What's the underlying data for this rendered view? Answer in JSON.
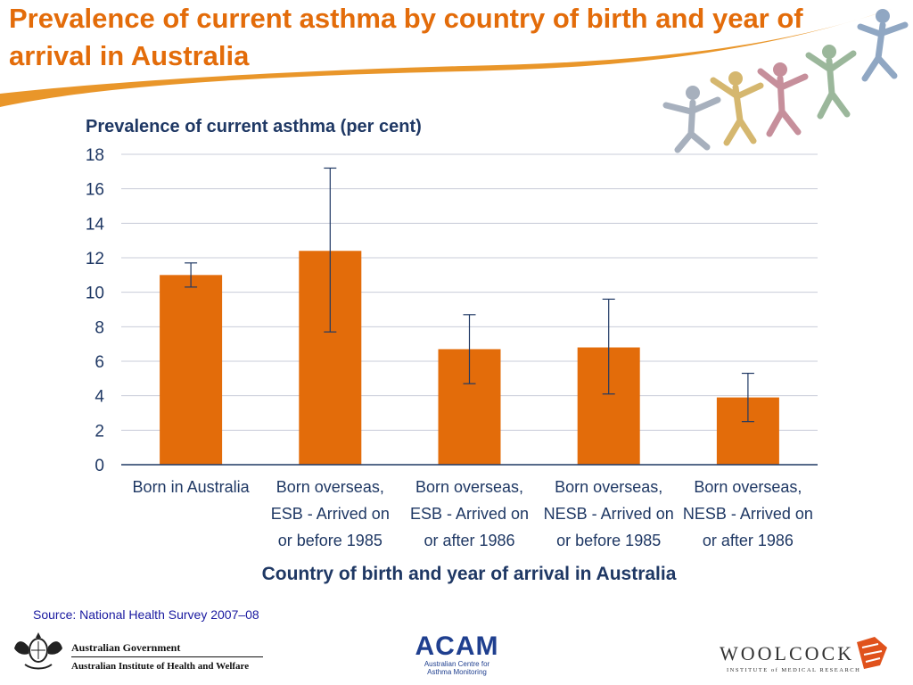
{
  "slide": {
    "title": "Prevalence of current asthma by country of birth and year of arrival in Australia",
    "source": "Source: National Health Survey 2007–08"
  },
  "colors": {
    "title": "#e36c0a",
    "bar": "#e36c0a",
    "axis_text": "#1f3864",
    "error_bar": "#1f3864",
    "grid": "#c8ccd8"
  },
  "chart_data": {
    "type": "bar",
    "title": "Prevalence of current asthma (per cent)",
    "xlabel": "Country of birth and year of arrival in Australia",
    "ylabel": "",
    "ylim": [
      0,
      18
    ],
    "yticks": [
      0,
      2,
      4,
      6,
      8,
      10,
      12,
      14,
      16,
      18
    ],
    "grid": true,
    "categories": [
      [
        "Born in Australia"
      ],
      [
        "Born overseas,",
        "ESB - Arrived on",
        "or before 1985"
      ],
      [
        "Born overseas,",
        "ESB - Arrived on",
        "or after 1986"
      ],
      [
        "Born overseas,",
        "NESB - Arrived on",
        "or before 1985"
      ],
      [
        "Born overseas,",
        "NESB - Arrived on",
        "or after 1986"
      ]
    ],
    "values": [
      11.0,
      12.4,
      6.7,
      6.8,
      3.9
    ],
    "error_low": [
      10.3,
      7.7,
      4.7,
      4.1,
      2.5
    ],
    "error_high": [
      11.7,
      17.2,
      8.7,
      9.6,
      5.3
    ]
  },
  "logos": {
    "aus_gov_line1": "Australian Government",
    "aus_gov_line2": "Australian Institute of Health and Welfare",
    "acam_name": "ACAM",
    "acam_line1": "Australian Centre for",
    "acam_line2": "Asthma Monitoring",
    "woolcock_name": "WOOLCOCK",
    "woolcock_sub": "INSTITUTE of MEDICAL RESEARCH"
  }
}
